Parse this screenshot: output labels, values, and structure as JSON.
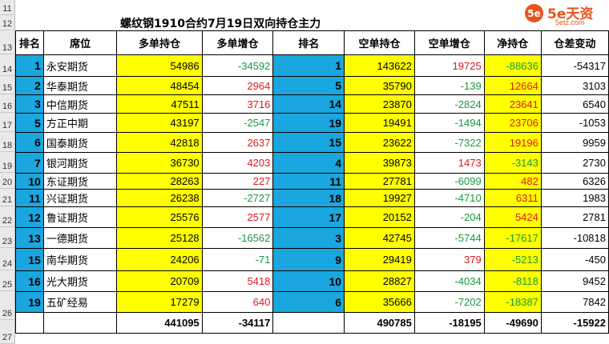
{
  "sheet": {
    "title": "螺纹钢1910合约7月19日双向持仓主力",
    "row_numbers": [
      "11",
      "12",
      "13",
      "14",
      "15",
      "16",
      "17",
      "18",
      "19",
      "20",
      "21",
      "22",
      "23",
      "24",
      "25",
      "26",
      "27"
    ],
    "headers": [
      "排名",
      "席位",
      "多单持仓",
      "多单增仓",
      "排名",
      "空单持仓",
      "空单增仓",
      "净持仓",
      "仓差变动"
    ],
    "rows": [
      {
        "rank_long": "1",
        "name": "永安期货",
        "long": "54986",
        "long_chg": "-34592",
        "rank_short": "1",
        "short": "143622",
        "short_chg": "19725",
        "net": "-88636",
        "diff": "-54317"
      },
      {
        "rank_long": "2",
        "name": "华泰期货",
        "long": "48454",
        "long_chg": "2964",
        "rank_short": "5",
        "short": "35790",
        "short_chg": "-139",
        "net": "12664",
        "diff": "3103"
      },
      {
        "rank_long": "3",
        "name": "中信期货",
        "long": "47511",
        "long_chg": "3716",
        "rank_short": "14",
        "short": "23870",
        "short_chg": "-2824",
        "net": "23641",
        "diff": "6540"
      },
      {
        "rank_long": "5",
        "name": "方正中期",
        "long": "43197",
        "long_chg": "-2547",
        "rank_short": "19",
        "short": "19491",
        "short_chg": "-1494",
        "net": "23706",
        "diff": "-1053"
      },
      {
        "rank_long": "6",
        "name": "国泰期货",
        "long": "42818",
        "long_chg": "2637",
        "rank_short": "15",
        "short": "23622",
        "short_chg": "-7322",
        "net": "19196",
        "diff": "9959"
      },
      {
        "rank_long": "7",
        "name": "银河期货",
        "long": "36730",
        "long_chg": "4203",
        "rank_short": "4",
        "short": "39873",
        "short_chg": "1473",
        "net": "-3143",
        "diff": "2730"
      },
      {
        "rank_long": "10",
        "name": "东证期货",
        "long": "28263",
        "long_chg": "227",
        "rank_short": "11",
        "short": "27781",
        "short_chg": "-6099",
        "net": "482",
        "diff": "6326"
      },
      {
        "rank_long": "11",
        "name": "兴证期货",
        "long": "26238",
        "long_chg": "-2727",
        "rank_short": "18",
        "short": "19927",
        "short_chg": "-4710",
        "net": "6311",
        "diff": "1983"
      },
      {
        "rank_long": "12",
        "name": "鲁证期货",
        "long": "25576",
        "long_chg": "2577",
        "rank_short": "17",
        "short": "20152",
        "short_chg": "-204",
        "net": "5424",
        "diff": "2781"
      },
      {
        "rank_long": "13",
        "name": "一德期货",
        "long": "25128",
        "long_chg": "-16562",
        "rank_short": "3",
        "short": "42745",
        "short_chg": "-5744",
        "net": "-17617",
        "diff": "-10818"
      },
      {
        "rank_long": "15",
        "name": "南华期货",
        "long": "24206",
        "long_chg": "-71",
        "rank_short": "9",
        "short": "29419",
        "short_chg": "379",
        "net": "-5213",
        "diff": "-450"
      },
      {
        "rank_long": "16",
        "name": "光大期货",
        "long": "20709",
        "long_chg": "5418",
        "rank_short": "10",
        "short": "28827",
        "short_chg": "-4034",
        "net": "-8118",
        "diff": "9452"
      },
      {
        "rank_long": "19",
        "name": "五矿经易",
        "long": "17279",
        "long_chg": "640",
        "rank_short": "6",
        "short": "35666",
        "short_chg": "-7202",
        "net": "-18387",
        "diff": "7842"
      }
    ],
    "totals": {
      "long": "441095",
      "long_chg": "-34117",
      "short": "490785",
      "short_chg": "-18195",
      "net": "-49690",
      "diff": "-15922"
    }
  },
  "logo": {
    "badge": "5e",
    "brand": "5e天资",
    "sub": "5etz.com"
  },
  "colors": {
    "blue": "#1aa7e0",
    "yellow": "#ffff00",
    "up": "#e0171f",
    "down": "#159b3c"
  }
}
